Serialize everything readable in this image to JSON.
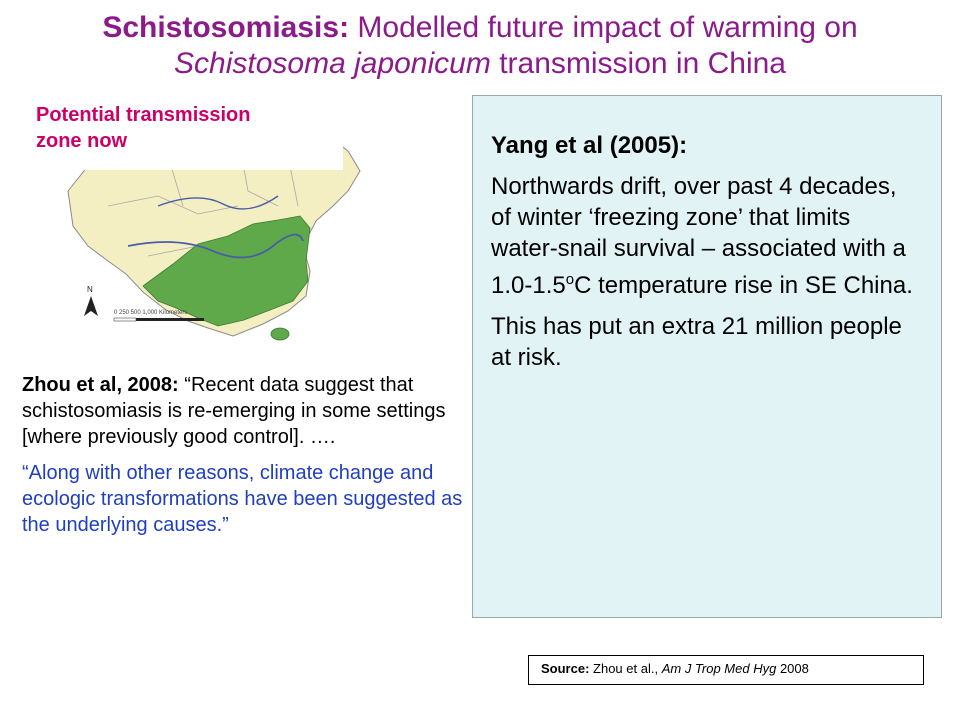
{
  "title": {
    "bold": "Schistosomiasis:",
    "line1_rest": "Modelled future impact of warming on",
    "italic": "Schistosoma japonicum",
    "line2_rest": "transmission in China"
  },
  "map": {
    "label_line1": "Potential transmission",
    "label_line2": "zone now",
    "north": "N",
    "scale_text": "0  250  500      1,000 Kilometers",
    "colors": {
      "land": "#F3EFC2",
      "zone": "#5FA94A",
      "river": "#4A5EA8",
      "border": "#8A8A8A"
    }
  },
  "zhou": {
    "bold": "Zhou et al, 2008:",
    "quote1": "“Recent data suggest that schistosomiasis is re-emerging in some settings [where previously good control]. ….",
    "quote2": "“Along with other reasons, climate change and ecologic transformations have been suggested as the underlying causes.”"
  },
  "yang": {
    "heading": "Yang et al (2005):",
    "para1_before": "Northwards drift, over past 4 decades, of winter ‘freezing zone’ that limits water-snail survival – associated with a 1.0-1.5",
    "para1_sup": "o",
    "para1_after": "C temperature rise in SE China.",
    "para2": "This has put an extra 21 million people at risk."
  },
  "source": {
    "label": "Source:",
    "authors": "Zhou et al.,",
    "journal": "Am J Trop Med Hyg",
    "year": "2008"
  }
}
